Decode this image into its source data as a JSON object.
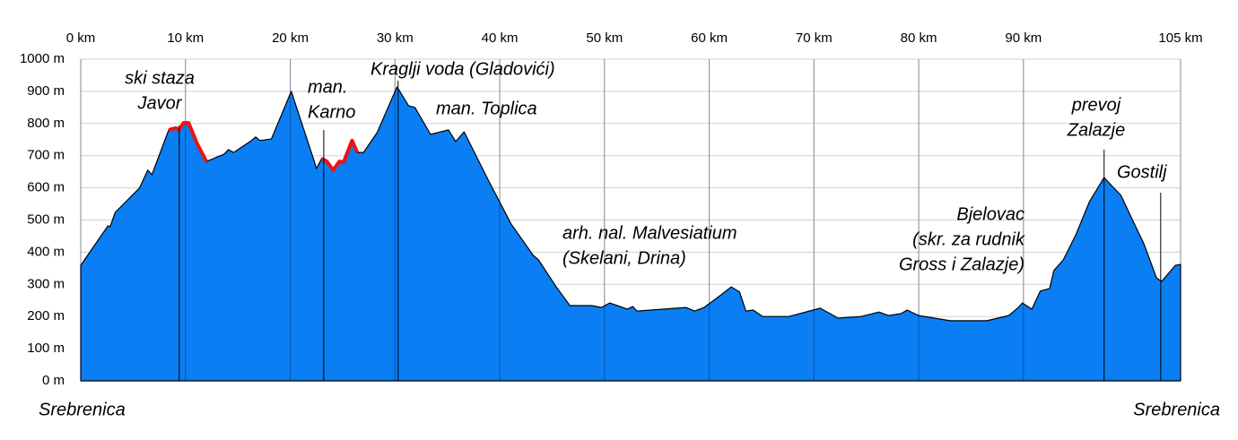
{
  "chart_data": {
    "type": "area",
    "x": [
      0,
      2.6,
      2.8,
      3.3,
      5.6,
      6.4,
      6.8,
      8.4,
      9.1,
      9.4,
      9.8,
      10.3,
      11.1,
      12.0,
      13.7,
      14.1,
      14.6,
      16.3,
      16.7,
      17.1,
      18.2,
      20.1,
      22.3,
      22.5,
      23.0,
      23.5,
      24.1,
      24.7,
      25.1,
      25.9,
      26.4,
      27.0,
      28.3,
      30.2,
      31.3,
      31.9,
      33.4,
      35.1,
      35.8,
      36.6,
      39.0,
      41.1,
      43.2,
      43.7,
      45.4,
      46.7,
      48.8,
      49.7,
      50.5,
      52.2,
      52.7,
      53.1,
      57.8,
      58.6,
      59.5,
      60.8,
      62.1,
      62.9,
      63.5,
      64.2,
      65.1,
      67.6,
      70.6,
      71.1,
      72.3,
      74.5,
      76.2,
      77.1,
      78.3,
      78.9,
      80.0,
      83.0,
      86.5,
      88.6,
      89.5,
      89.9,
      90.8,
      91.6,
      92.5,
      92.9,
      93.8,
      95.0,
      96.3,
      97.7,
      98.5,
      99.3,
      100.6,
      101.5,
      102.7,
      103.2,
      104.5,
      105
    ],
    "series": [
      {
        "color": "#0a7ef2",
        "values": [
          359,
          482,
          479,
          524,
          599,
          655,
          641,
          780,
          786,
          780,
          802,
          802,
          738,
          682,
          705,
          719,
          710,
          747,
          758,
          747,
          752,
          900,
          682,
          660,
          691,
          682,
          655,
          682,
          680,
          747,
          710,
          710,
          772,
          914,
          855,
          850,
          766,
          780,
          744,
          774,
          618,
          487,
          390,
          376,
          292,
          234,
          234,
          228,
          242,
          223,
          231,
          217,
          228,
          217,
          228,
          259,
          292,
          276,
          217,
          220,
          200,
          200,
          226,
          217,
          195,
          200,
          214,
          203,
          209,
          220,
          203,
          187,
          187,
          203,
          228,
          242,
          223,
          279,
          287,
          343,
          376,
          454,
          557,
          632,
          604,
          577,
          487,
          426,
          320,
          309,
          359,
          362
        ]
      }
    ],
    "highlight": {
      "color": "#ee1111",
      "ranges": [
        [
          8.4,
          12.0
        ],
        [
          23.0,
          26.4
        ]
      ]
    },
    "xlim": [
      0,
      105
    ],
    "xticks": [
      {
        "value": 0,
        "label": "0 km"
      },
      {
        "value": 10,
        "label": "10 km"
      },
      {
        "value": 20,
        "label": "20 km"
      },
      {
        "value": 30,
        "label": "30 km"
      },
      {
        "value": 40,
        "label": "40 km"
      },
      {
        "value": 50,
        "label": "50 km"
      },
      {
        "value": 60,
        "label": "60 km"
      },
      {
        "value": 70,
        "label": "70 km"
      },
      {
        "value": 80,
        "label": "80 km"
      },
      {
        "value": 90,
        "label": "90 km"
      },
      {
        "value": 105,
        "label": "105 km"
      }
    ],
    "ylim": [
      0,
      1000
    ],
    "yticks": [
      {
        "value": 0,
        "label": "0 m"
      },
      {
        "value": 100,
        "label": "100 m"
      },
      {
        "value": 200,
        "label": "200 m"
      },
      {
        "value": 300,
        "label": "300 m"
      },
      {
        "value": 400,
        "label": "400 m"
      },
      {
        "value": 500,
        "label": "500 m"
      },
      {
        "value": 600,
        "label": "600 m"
      },
      {
        "value": 700,
        "label": "700 m"
      },
      {
        "value": 800,
        "label": "800 m"
      },
      {
        "value": 900,
        "label": "900 m"
      },
      {
        "value": 1000,
        "label": "1000 m"
      }
    ],
    "grid": true,
    "annotations": [
      {
        "lines": [
          "ski staza",
          "Javor"
        ],
        "x": 9.4
      },
      {
        "lines": [
          "man.",
          "Karno"
        ],
        "x": 23.2
      },
      {
        "lines": [
          "Kraglji voda (Gladovići)"
        ],
        "x": 30.3
      },
      {
        "lines": [
          "man. Toplica"
        ]
      },
      {
        "lines": [
          "arh. nal. Malvesiatium",
          "(Skelani, Drina)"
        ]
      },
      {
        "lines": [
          "Bjelovac",
          "(skr. za rudnik",
          "Gross i Zalazje)"
        ]
      },
      {
        "lines": [
          "prevoj",
          "Zalazje"
        ],
        "x": 97.7
      },
      {
        "lines": [
          "Gostilj"
        ],
        "x": 103.1
      }
    ],
    "start_label": "Srebrenica",
    "end_label": "Srebrenica"
  }
}
